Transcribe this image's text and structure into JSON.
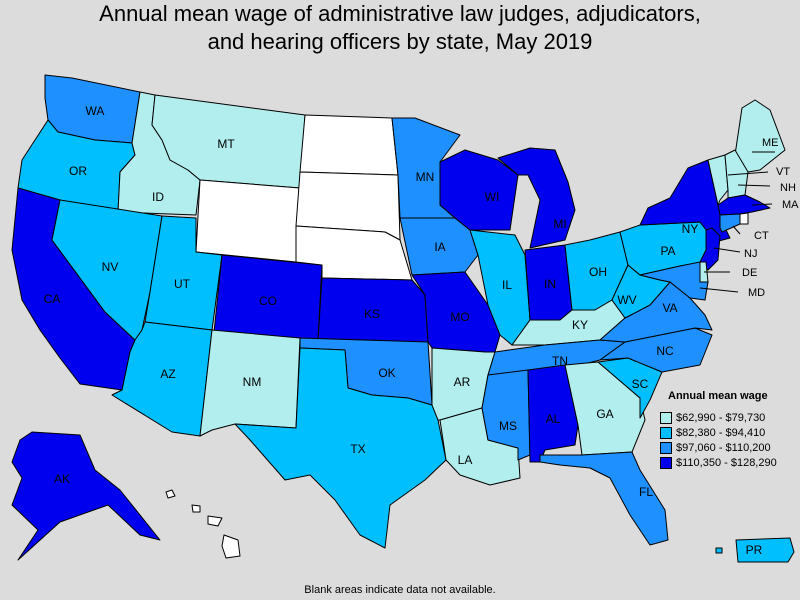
{
  "title": {
    "line1": "Annual mean wage of administrative law judges, adjudicators,",
    "line2": "and hearing officers by state, May 2019"
  },
  "legend": {
    "title": "Annual mean wage",
    "bins": [
      {
        "label": "$62,990 - $79,730",
        "color": "#b2eeee"
      },
      {
        "label": "$82,380 - $94,410",
        "color": "#00bfff"
      },
      {
        "label": "$97,060 - $110,200",
        "color": "#1e90ff"
      },
      {
        "label": "$110,350 - $128,290",
        "color": "#0000ee"
      }
    ]
  },
  "blank_color": "#ffffff",
  "footnote": "Blank areas indicate data not available.",
  "states": [
    {
      "id": "WA",
      "label": "WA",
      "bin": 2
    },
    {
      "id": "OR",
      "label": "OR",
      "bin": 1
    },
    {
      "id": "CA",
      "label": "CA",
      "bin": 3
    },
    {
      "id": "ID",
      "label": "ID",
      "bin": 0
    },
    {
      "id": "NV",
      "label": "NV",
      "bin": 1
    },
    {
      "id": "MT",
      "label": "MT",
      "bin": 0
    },
    {
      "id": "WY",
      "label": "",
      "bin": null
    },
    {
      "id": "UT",
      "label": "UT",
      "bin": 1
    },
    {
      "id": "AZ",
      "label": "AZ",
      "bin": 1
    },
    {
      "id": "CO",
      "label": "CO",
      "bin": 3
    },
    {
      "id": "NM",
      "label": "NM",
      "bin": 0
    },
    {
      "id": "ND",
      "label": "",
      "bin": null
    },
    {
      "id": "SD",
      "label": "",
      "bin": null
    },
    {
      "id": "NE",
      "label": "",
      "bin": null
    },
    {
      "id": "KS",
      "label": "KS",
      "bin": 3
    },
    {
      "id": "OK",
      "label": "OK",
      "bin": 2
    },
    {
      "id": "TX",
      "label": "TX",
      "bin": 1
    },
    {
      "id": "MN",
      "label": "MN",
      "bin": 2
    },
    {
      "id": "IA",
      "label": "IA",
      "bin": 2
    },
    {
      "id": "MO",
      "label": "MO",
      "bin": 3
    },
    {
      "id": "AR",
      "label": "AR",
      "bin": 0
    },
    {
      "id": "LA",
      "label": "LA",
      "bin": 0
    },
    {
      "id": "WI",
      "label": "WI",
      "bin": 3
    },
    {
      "id": "IL",
      "label": "IL",
      "bin": 1
    },
    {
      "id": "MI",
      "label": "MI",
      "bin": 3
    },
    {
      "id": "IN",
      "label": "IN",
      "bin": 3
    },
    {
      "id": "OH",
      "label": "OH",
      "bin": 1
    },
    {
      "id": "KY",
      "label": "KY",
      "bin": 0
    },
    {
      "id": "TN",
      "label": "TN",
      "bin": 2
    },
    {
      "id": "MS",
      "label": "MS",
      "bin": 2
    },
    {
      "id": "AL",
      "label": "AL",
      "bin": 3
    },
    {
      "id": "GA",
      "label": "GA",
      "bin": 0
    },
    {
      "id": "FL",
      "label": "FL",
      "bin": 2
    },
    {
      "id": "SC",
      "label": "SC",
      "bin": 1
    },
    {
      "id": "NC",
      "label": "NC",
      "bin": 2
    },
    {
      "id": "VA",
      "label": "VA",
      "bin": 2
    },
    {
      "id": "WV",
      "label": "WV",
      "bin": 1
    },
    {
      "id": "PA",
      "label": "PA",
      "bin": 1
    },
    {
      "id": "NY",
      "label": "NY",
      "bin": 3
    },
    {
      "id": "ME",
      "label": "ME",
      "bin": 0
    },
    {
      "id": "VT",
      "label": "VT",
      "bin": 0
    },
    {
      "id": "NH",
      "label": "NH",
      "bin": 0
    },
    {
      "id": "MA",
      "label": "MA",
      "bin": 3
    },
    {
      "id": "RI",
      "label": "",
      "bin": null
    },
    {
      "id": "CT",
      "label": "CT",
      "bin": 2
    },
    {
      "id": "NJ",
      "label": "NJ",
      "bin": 3
    },
    {
      "id": "DE",
      "label": "DE",
      "bin": 0
    },
    {
      "id": "MD",
      "label": "MD",
      "bin": 2
    },
    {
      "id": "AK",
      "label": "AK",
      "bin": 3
    },
    {
      "id": "HI",
      "label": "",
      "bin": null
    },
    {
      "id": "PR",
      "label": "PR",
      "bin": 1
    }
  ]
}
